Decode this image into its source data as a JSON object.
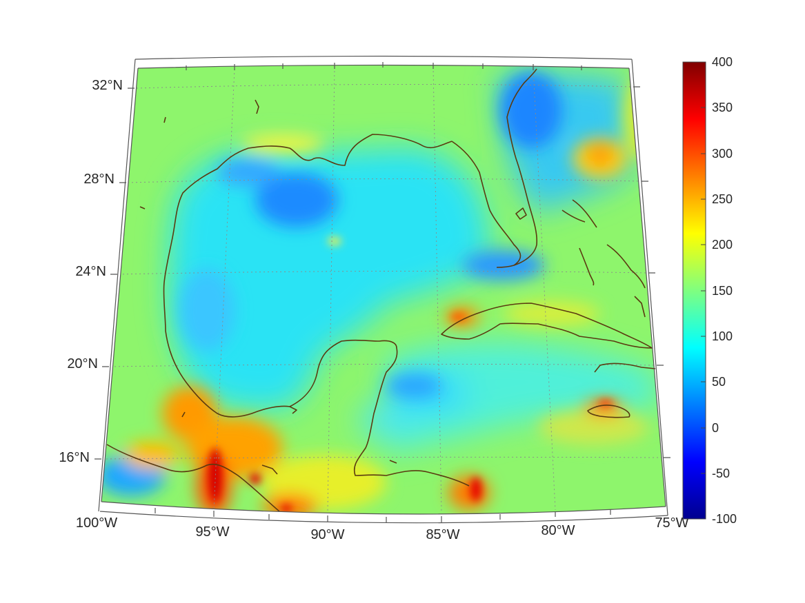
{
  "map": {
    "projection": "conic",
    "coastline_color": "#5a3a10",
    "frame_color": "#555555",
    "graticule_color": "#8a8a8a",
    "lat_labels": [
      "32°N",
      "28°N",
      "24°N",
      "20°N",
      "16°N"
    ],
    "lon_labels": [
      "100°W",
      "95°W",
      "90°W",
      "85°W",
      "80°W",
      "75°W"
    ]
  },
  "colorbar": {
    "colormap": "jet",
    "min": -100,
    "max": 400,
    "tick_labels": [
      "400",
      "350",
      "300",
      "250",
      "200",
      "150",
      "100",
      "50",
      "0",
      "-50",
      "-100"
    ]
  }
}
